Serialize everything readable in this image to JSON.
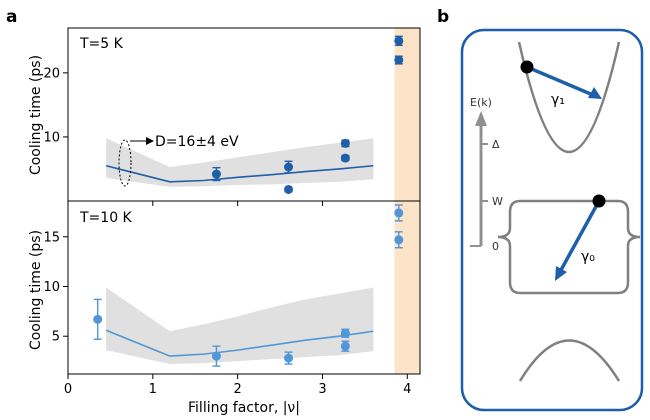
{
  "figure": {
    "panel_a_label": "a",
    "panel_b_label": "b"
  },
  "chart_data": [
    {
      "type": "scatter",
      "panel": "a-top",
      "title": "T=5 K",
      "xlabel": "",
      "ylabel": "Cooling time (ps)",
      "xlim": [
        0,
        4.15
      ],
      "ylim": [
        0,
        27
      ],
      "yticks": [
        10,
        20
      ],
      "grid": false,
      "annotation": "D=16±4 eV",
      "marker_color": "#1f5ea8",
      "points": [
        {
          "x": 1.75,
          "y": 4.2,
          "err": 1.0
        },
        {
          "x": 2.6,
          "y": 5.3,
          "err": 0.9
        },
        {
          "x": 2.6,
          "y": 1.8,
          "err": 0.3
        },
        {
          "x": 3.27,
          "y": 9.0,
          "err": 0.5
        },
        {
          "x": 3.27,
          "y": 6.7,
          "err": 0.4
        },
        {
          "x": 3.9,
          "y": 25.0,
          "err": 0.7
        },
        {
          "x": 3.9,
          "y": 22.0,
          "err": 0.6
        }
      ],
      "model_line": {
        "x": [
          0.45,
          1.2,
          1.6,
          2.0,
          2.4,
          2.8,
          3.2,
          3.6
        ],
        "y": [
          5.5,
          3.0,
          3.2,
          3.7,
          4.1,
          4.6,
          5.0,
          5.5
        ]
      },
      "band_upper": [
        9.8,
        5.3,
        6.0,
        6.8,
        7.6,
        8.4,
        9.1,
        9.8
      ],
      "band_lower": [
        3.6,
        2.2,
        2.3,
        2.5,
        2.6,
        2.8,
        3.0,
        3.4
      ],
      "highlight_region": [
        3.85,
        4.15
      ]
    },
    {
      "type": "scatter",
      "panel": "a-bottom",
      "title": "T=10 K",
      "xlabel": "Filling factor, |ν|",
      "ylabel": "Cooling time (ps)",
      "xlim": [
        0,
        4.15
      ],
      "ylim": [
        1.2,
        18.6
      ],
      "xticks": [
        0,
        1,
        2,
        3,
        4
      ],
      "yticks": [
        5,
        10,
        15
      ],
      "grid": false,
      "marker_color": "#4f97d6",
      "points": [
        {
          "x": 0.35,
          "y": 6.7,
          "err": 2.0
        },
        {
          "x": 1.75,
          "y": 3.0,
          "err": 1.0
        },
        {
          "x": 2.6,
          "y": 2.8,
          "err": 0.6
        },
        {
          "x": 3.27,
          "y": 5.3,
          "err": 0.4
        },
        {
          "x": 3.27,
          "y": 4.0,
          "err": 0.5
        },
        {
          "x": 3.9,
          "y": 17.4,
          "err": 0.8
        },
        {
          "x": 3.9,
          "y": 14.7,
          "err": 0.8
        }
      ],
      "model_line": {
        "x": [
          0.45,
          1.2,
          1.6,
          2.0,
          2.4,
          2.8,
          3.2,
          3.6
        ],
        "y": [
          5.6,
          3.0,
          3.2,
          3.6,
          4.1,
          4.6,
          5.0,
          5.5
        ]
      },
      "band_upper": [
        9.9,
        5.5,
        6.2,
        7.0,
        7.9,
        8.7,
        9.3,
        9.9
      ],
      "band_lower": [
        3.6,
        2.2,
        2.3,
        2.5,
        2.7,
        2.9,
        3.1,
        3.5
      ],
      "highlight_region": [
        3.85,
        4.15
      ]
    }
  ],
  "diagram_b": {
    "axis_label": "E(k)",
    "levels": {
      "delta": "Δ",
      "w": "W",
      "zero": "0"
    },
    "gamma1": "γ₁",
    "gamma0": "γ₀",
    "colors": {
      "arrow": "#1f5ea8",
      "curves": "#808080",
      "frame": "#1f5ea8"
    }
  }
}
